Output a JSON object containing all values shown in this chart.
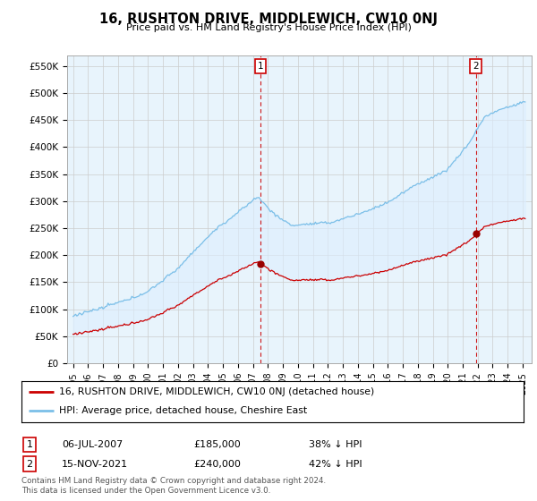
{
  "title": "16, RUSHTON DRIVE, MIDDLEWICH, CW10 0NJ",
  "subtitle": "Price paid vs. HM Land Registry's House Price Index (HPI)",
  "ylabel_ticks": [
    "£0",
    "£50K",
    "£100K",
    "£150K",
    "£200K",
    "£250K",
    "£300K",
    "£350K",
    "£400K",
    "£450K",
    "£500K",
    "£550K"
  ],
  "ytick_values": [
    0,
    50000,
    100000,
    150000,
    200000,
    250000,
    300000,
    350000,
    400000,
    450000,
    500000,
    550000
  ],
  "ylim": [
    0,
    570000
  ],
  "xlim_start": 1994.6,
  "xlim_end": 2025.6,
  "hpi_color": "#7bbfe8",
  "hpi_fill_color": "#ddeeff",
  "price_color": "#cc0000",
  "marker1_year": 2007.5,
  "marker2_year": 2021.88,
  "marker1_price": 185000,
  "marker2_price": 240000,
  "legend_label_red": "16, RUSHTON DRIVE, MIDDLEWICH, CW10 0NJ (detached house)",
  "legend_label_blue": "HPI: Average price, detached house, Cheshire East",
  "table_row1": [
    "1",
    "06-JUL-2007",
    "£185,000",
    "38% ↓ HPI"
  ],
  "table_row2": [
    "2",
    "15-NOV-2021",
    "£240,000",
    "42% ↓ HPI"
  ],
  "footer": "Contains HM Land Registry data © Crown copyright and database right 2024.\nThis data is licensed under the Open Government Licence v3.0.",
  "background_color": "#ffffff",
  "grid_color": "#cccccc"
}
